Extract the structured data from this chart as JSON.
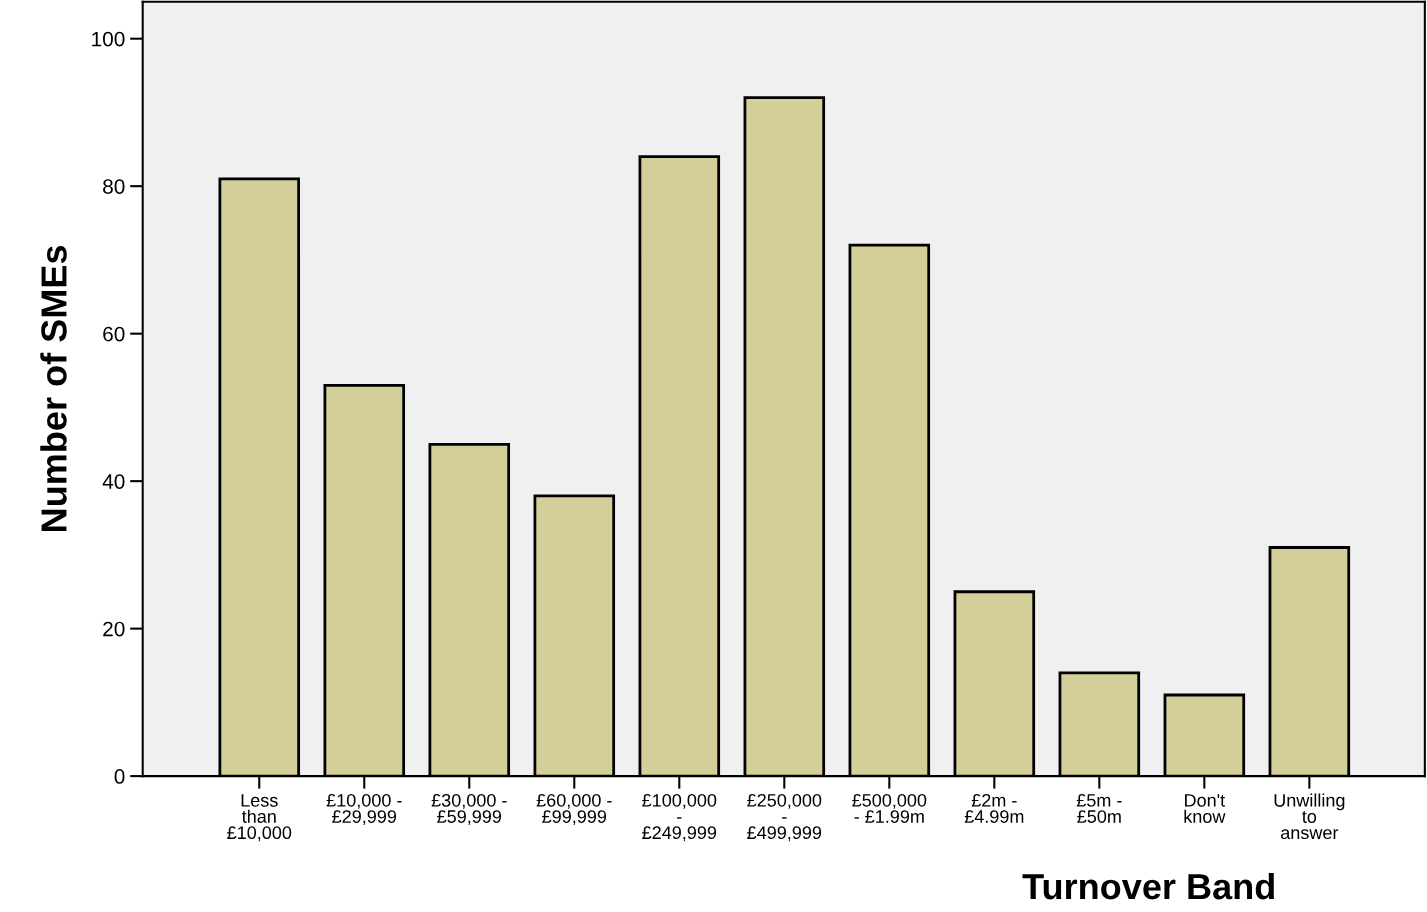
{
  "chart_data": {
    "type": "bar",
    "xlabel": "Turnover Band",
    "ylabel": "Number of SMEs",
    "categories": [
      "Less\nthan\n£10,000",
      "£10,000 -\n£29,999",
      "£30,000 -\n£59,999",
      "£60,000 -\n£99,999",
      "£100,000\n-\n£249,999",
      "£250,000\n-\n£499,999",
      "£500,000\n- £1.99m",
      "£2m -\n£4.99m",
      "£5m -\n£50m",
      "Don't\nknow",
      "Unwilling\nto\nanswer"
    ],
    "values": [
      81,
      53,
      45,
      38,
      84,
      92,
      72,
      25,
      14,
      11,
      31
    ],
    "color": "#d4cf98",
    "ylim": [
      0,
      105
    ],
    "yticks": [
      0,
      20,
      40,
      60,
      80,
      100
    ],
    "grid": false,
    "legend": false
  }
}
